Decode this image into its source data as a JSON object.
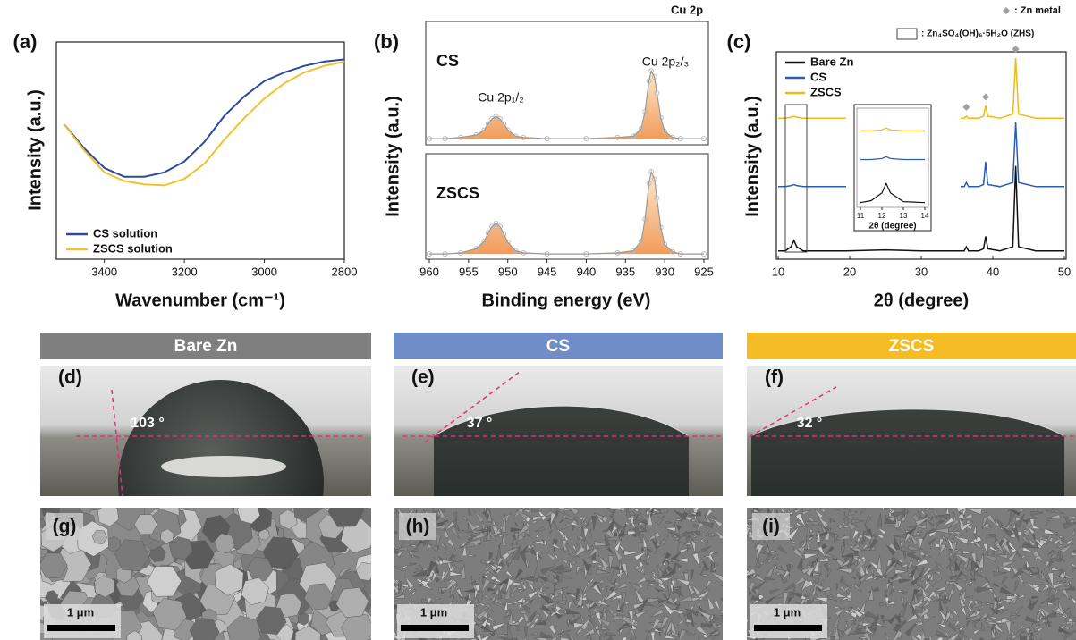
{
  "chart_data": [
    {
      "type": "line",
      "label": "(a)",
      "ylabel": "Intensity (a.u.)",
      "xlabel": "Wavenumber (cm⁻¹)",
      "x": [
        3500,
        3450,
        3400,
        3350,
        3300,
        3250,
        3200,
        3150,
        3100,
        3050,
        3000,
        2950,
        2900,
        2850,
        2800
      ],
      "xlim": [
        3520,
        2800
      ],
      "xticks": [
        3400,
        3200,
        3000,
        2800
      ],
      "ylim": [
        0,
        1
      ],
      "series": [
        {
          "name": "CS solution",
          "color": "#2a4aa0",
          "values": [
            0.62,
            0.51,
            0.42,
            0.38,
            0.38,
            0.4,
            0.45,
            0.54,
            0.66,
            0.75,
            0.82,
            0.86,
            0.89,
            0.91,
            0.92
          ]
        },
        {
          "name": "ZSCS solution",
          "color": "#f2c12e",
          "values": [
            0.62,
            0.5,
            0.4,
            0.36,
            0.345,
            0.34,
            0.37,
            0.44,
            0.55,
            0.65,
            0.74,
            0.81,
            0.86,
            0.89,
            0.91
          ]
        }
      ]
    },
    {
      "type": "xps",
      "label": "(b)",
      "title": "Cu 2p",
      "ylabel": "Intensity (a.u.)",
      "xlabel": "Binding energy (eV)",
      "x": [
        960,
        958,
        956,
        954,
        953,
        952.5,
        952,
        951.5,
        951,
        950.5,
        950,
        949,
        948,
        945,
        940,
        936,
        934,
        933,
        932.5,
        932,
        931.7,
        931.3,
        931,
        930.5,
        930,
        929,
        928,
        925
      ],
      "xlim": [
        960,
        925
      ],
      "xticks": [
        960,
        955,
        950,
        945,
        940,
        935,
        930,
        925
      ],
      "ylim": [
        0,
        1
      ],
      "peak_labels": [
        "Cu 2p₁/₂",
        "Cu 2p₂/₃"
      ],
      "color": "#f08a3c",
      "series": [
        {
          "name": "CS",
          "values": [
            0.05,
            0.05,
            0.06,
            0.08,
            0.12,
            0.17,
            0.21,
            0.23,
            0.21,
            0.17,
            0.12,
            0.07,
            0.06,
            0.05,
            0.05,
            0.06,
            0.07,
            0.13,
            0.27,
            0.52,
            0.6,
            0.55,
            0.42,
            0.22,
            0.11,
            0.06,
            0.05,
            0.05
          ]
        },
        {
          "name": "ZSCS",
          "values": [
            0.05,
            0.05,
            0.06,
            0.1,
            0.17,
            0.25,
            0.31,
            0.34,
            0.31,
            0.24,
            0.16,
            0.08,
            0.06,
            0.05,
            0.05,
            0.06,
            0.08,
            0.17,
            0.38,
            0.72,
            0.83,
            0.76,
            0.58,
            0.3,
            0.14,
            0.07,
            0.05,
            0.05
          ]
        }
      ]
    },
    {
      "type": "xrd",
      "label": "(c)",
      "ylabel": "Intensity (a.u.)",
      "xlabel": "2θ (degree)",
      "x": [
        10,
        11,
        11.8,
        12.2,
        12.6,
        13.5,
        16,
        19.5,
        25,
        30,
        35.5,
        36,
        36.3,
        36.6,
        38,
        38.7,
        39,
        39.3,
        41,
        42.8,
        43.2,
        43.6,
        46,
        50
      ],
      "xlim": [
        10,
        50
      ],
      "xticks": [
        10,
        20,
        30,
        40,
        50
      ],
      "ylim": [
        0,
        1
      ],
      "zn_metal_legend": ": Zn metal",
      "zhs_legend": ": Zn₄SO₄(OH)₆·5H₂O (ZHS)",
      "zn_metal_x": [
        36.3,
        39,
        43.2
      ],
      "marker_color": "#a0a0a0",
      "series": [
        {
          "name": "Bare Zn",
          "color": "#111111",
          "values": [
            0.04,
            0.04,
            0.06,
            0.09,
            0.06,
            0.04,
            0.04,
            0.04,
            0.045,
            0.04,
            0.04,
            0.04,
            0.06,
            0.04,
            0.04,
            0.05,
            0.11,
            0.05,
            0.04,
            0.06,
            0.45,
            0.06,
            0.04,
            0.04
          ]
        },
        {
          "name": "CS",
          "color": "#2a5cb8",
          "values": [
            0.35,
            0.35,
            0.355,
            0.36,
            0.355,
            0.35,
            0.35,
            0.35,
            null,
            null,
            0.35,
            0.35,
            0.37,
            0.35,
            0.35,
            0.36,
            0.47,
            0.36,
            0.35,
            0.37,
            0.66,
            0.37,
            0.35,
            0.35
          ]
        },
        {
          "name": "ZSCS",
          "color": "#f2b818",
          "values": [
            0.68,
            0.68,
            0.685,
            0.69,
            0.685,
            0.68,
            0.68,
            0.68,
            null,
            null,
            0.68,
            0.68,
            0.69,
            0.68,
            0.68,
            0.69,
            0.74,
            0.69,
            0.68,
            0.7,
            0.97,
            0.7,
            0.68,
            0.68
          ]
        }
      ],
      "inset": {
        "xlabel": "2θ (degree)",
        "x": [
          11,
          11.5,
          12,
          12.2,
          12.4,
          13,
          14
        ],
        "xlim": [
          11,
          14
        ],
        "xticks": [
          11,
          12,
          13,
          14
        ],
        "ylim": [
          0,
          1
        ],
        "values": [
          [
            0.05,
            0.07,
            0.15,
            0.25,
            0.15,
            0.06,
            0.05
          ],
          [
            0.5,
            0.5,
            0.51,
            0.53,
            0.51,
            0.5,
            0.5
          ],
          [
            0.8,
            0.8,
            0.81,
            0.83,
            0.81,
            0.8,
            0.8
          ]
        ]
      }
    }
  ],
  "photos": [
    {
      "header": "Bare Zn",
      "label": "(d)",
      "angle": "103 °",
      "sem_label": "(g)",
      "scale": "1 μm"
    },
    {
      "header": "CS",
      "label": "(e)",
      "angle": "37 °",
      "sem_label": "(h)",
      "scale": "1 μm"
    },
    {
      "header": "ZSCS",
      "label": "(f)",
      "angle": "32 °",
      "sem_label": "(i)",
      "scale": "1 μm"
    }
  ]
}
